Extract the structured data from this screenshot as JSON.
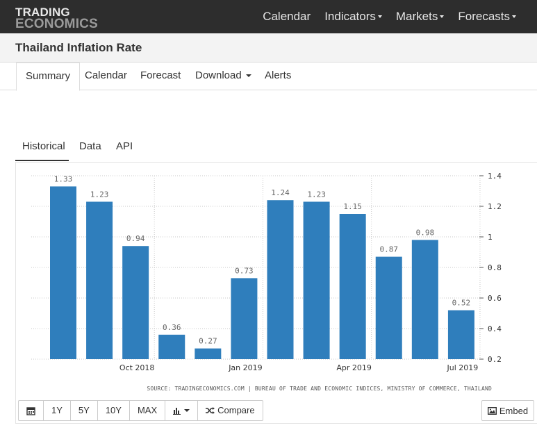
{
  "brand": {
    "line1": "TRADING",
    "line2": "ECONOMICS"
  },
  "nav": {
    "items": [
      {
        "label": "Calendar",
        "dropdown": false
      },
      {
        "label": "Indicators",
        "dropdown": true
      },
      {
        "label": "Markets",
        "dropdown": true
      },
      {
        "label": "Forecasts",
        "dropdown": true
      }
    ]
  },
  "page": {
    "title": "Thailand Inflation Rate"
  },
  "main_tabs": [
    "Summary",
    "Calendar",
    "Forecast",
    "Download",
    "Alerts"
  ],
  "sub_tabs": [
    "Historical",
    "Data",
    "API"
  ],
  "toolbar": {
    "buttons": [
      "1Y",
      "5Y",
      "10Y",
      "MAX"
    ],
    "compare": "Compare",
    "embed": "Embed"
  },
  "colors": {
    "bar": "#2f7ebc",
    "navbar": "#2d2d2d"
  },
  "chart_data": {
    "type": "bar",
    "categories": [
      "Aug 2018",
      "Sep 2018",
      "Oct 2018",
      "Nov 2018",
      "Dec 2018",
      "Jan 2019",
      "Feb 2019",
      "Mar 2019",
      "Apr 2019",
      "May 2019",
      "Jun 2019",
      "Jul 2019"
    ],
    "values": [
      1.33,
      1.23,
      0.94,
      0.36,
      0.27,
      0.73,
      1.24,
      1.23,
      1.15,
      0.87,
      0.98,
      0.52
    ],
    "data_labels": [
      "1.33",
      "1.23",
      "0.94",
      "0.36",
      "0.27",
      "0.73",
      "1.24",
      "1.23",
      "1.15",
      "0.87",
      "0.98",
      "0.52"
    ],
    "x_tick_labels": [
      "Oct 2018",
      "Jan 2019",
      "Apr 2019",
      "Jul 2019"
    ],
    "y_tick_labels": [
      "1.4",
      "1.2",
      "1",
      "0.8",
      "0.6",
      "0.4",
      "0.2"
    ],
    "ylim": [
      0.2,
      1.4
    ],
    "y_axis_position": "right",
    "grid": true,
    "source": "SOURCE: TRADINGECONOMICS.COM | BUREAU OF TRADE AND ECONOMIC INDICES, MINISTRY OF COMMERCE, THAILAND"
  }
}
